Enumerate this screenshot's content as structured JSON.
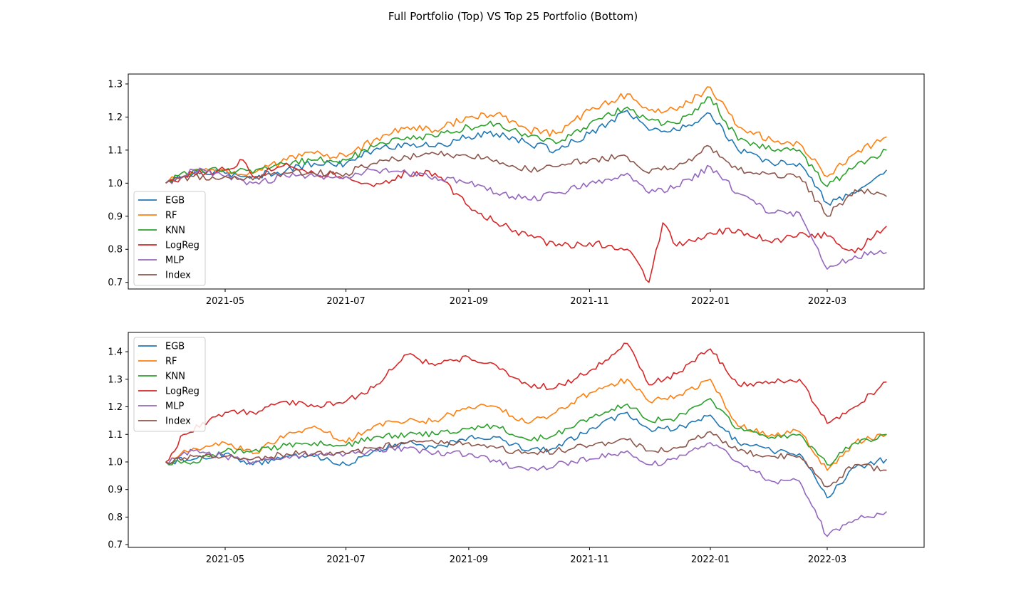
{
  "figure": {
    "title": "Full Portfolio (Top) VS Top 25 Portfolio (Bottom)"
  },
  "chart_data": [
    {
      "type": "line",
      "title": "",
      "xlabel": "",
      "ylabel": "",
      "x_start": "2021-04-01",
      "x_end": "2022-03-31",
      "x_ticks": [
        "2021-05",
        "2021-07",
        "2021-09",
        "2021-11",
        "2022-01",
        "2022-03"
      ],
      "y_ticks": [
        0.7,
        0.8,
        0.9,
        1.0,
        1.1,
        1.2,
        1.3
      ],
      "ylim": [
        0.68,
        1.33
      ],
      "grid": false,
      "legend_position": "center-left",
      "series": [
        {
          "name": "EGB",
          "color": "#1f77b4",
          "x": [
            "2021-04-01",
            "2021-04-15",
            "2021-05-01",
            "2021-05-15",
            "2021-06-01",
            "2021-06-15",
            "2021-07-01",
            "2021-07-15",
            "2021-08-01",
            "2021-08-15",
            "2021-09-01",
            "2021-09-15",
            "2021-10-01",
            "2021-10-15",
            "2021-11-01",
            "2021-11-20",
            "2021-12-01",
            "2021-12-15",
            "2022-01-01",
            "2022-01-15",
            "2022-02-01",
            "2022-02-15",
            "2022-03-01",
            "2022-03-15",
            "2022-03-31"
          ],
          "values": [
            1.0,
            1.03,
            1.03,
            1.02,
            1.04,
            1.06,
            1.06,
            1.1,
            1.12,
            1.11,
            1.14,
            1.15,
            1.12,
            1.1,
            1.15,
            1.22,
            1.16,
            1.16,
            1.21,
            1.1,
            1.06,
            1.06,
            0.94,
            0.97,
            1.04
          ]
        },
        {
          "name": "RF",
          "color": "#ff7f0e",
          "x": [
            "2021-04-01",
            "2021-04-15",
            "2021-05-01",
            "2021-05-15",
            "2021-06-01",
            "2021-06-15",
            "2021-07-01",
            "2021-07-15",
            "2021-08-01",
            "2021-08-15",
            "2021-09-01",
            "2021-09-15",
            "2021-10-01",
            "2021-10-15",
            "2021-11-01",
            "2021-11-20",
            "2021-12-01",
            "2021-12-15",
            "2022-01-01",
            "2022-01-15",
            "2022-02-01",
            "2022-02-15",
            "2022-03-01",
            "2022-03-15",
            "2022-03-31"
          ],
          "values": [
            1.0,
            1.04,
            1.04,
            1.03,
            1.07,
            1.09,
            1.08,
            1.13,
            1.17,
            1.16,
            1.2,
            1.21,
            1.16,
            1.15,
            1.22,
            1.27,
            1.22,
            1.22,
            1.29,
            1.17,
            1.13,
            1.12,
            1.02,
            1.09,
            1.14
          ]
        },
        {
          "name": "KNN",
          "color": "#2ca02c",
          "x": [
            "2021-04-01",
            "2021-04-15",
            "2021-05-01",
            "2021-05-15",
            "2021-06-01",
            "2021-06-15",
            "2021-07-01",
            "2021-07-15",
            "2021-08-01",
            "2021-08-15",
            "2021-09-01",
            "2021-09-15",
            "2021-10-01",
            "2021-10-15",
            "2021-11-01",
            "2021-11-20",
            "2021-12-01",
            "2021-12-15",
            "2022-01-01",
            "2022-01-15",
            "2022-02-01",
            "2022-02-15",
            "2022-03-01",
            "2022-03-15",
            "2022-03-31"
          ],
          "values": [
            1.0,
            1.04,
            1.04,
            1.03,
            1.06,
            1.07,
            1.07,
            1.11,
            1.14,
            1.14,
            1.17,
            1.18,
            1.14,
            1.12,
            1.18,
            1.23,
            1.19,
            1.18,
            1.26,
            1.13,
            1.1,
            1.1,
            0.99,
            1.05,
            1.1
          ]
        },
        {
          "name": "LogReg",
          "color": "#d62728",
          "x": [
            "2021-04-01",
            "2021-04-15",
            "2021-05-01",
            "2021-05-10",
            "2021-05-15",
            "2021-06-01",
            "2021-06-15",
            "2021-07-01",
            "2021-07-15",
            "2021-08-01",
            "2021-08-15",
            "2021-09-01",
            "2021-09-15",
            "2021-10-01",
            "2021-10-15",
            "2021-11-01",
            "2021-11-20",
            "2021-12-01",
            "2021-12-08",
            "2021-12-15",
            "2022-01-01",
            "2022-01-15",
            "2022-02-01",
            "2022-02-15",
            "2022-03-01",
            "2022-03-15",
            "2022-03-31"
          ],
          "values": [
            1.0,
            1.03,
            1.04,
            1.07,
            1.02,
            1.06,
            1.03,
            1.02,
            0.99,
            1.03,
            1.03,
            0.93,
            0.88,
            0.84,
            0.81,
            0.82,
            0.8,
            0.7,
            0.88,
            0.81,
            0.85,
            0.86,
            0.82,
            0.85,
            0.84,
            0.79,
            0.87
          ]
        },
        {
          "name": "MLP",
          "color": "#9467bd",
          "x": [
            "2021-04-01",
            "2021-04-15",
            "2021-05-01",
            "2021-05-15",
            "2021-06-01",
            "2021-06-15",
            "2021-07-01",
            "2021-07-15",
            "2021-08-01",
            "2021-08-15",
            "2021-09-01",
            "2021-09-15",
            "2021-10-01",
            "2021-10-15",
            "2021-11-01",
            "2021-11-20",
            "2021-12-01",
            "2021-12-15",
            "2022-01-01",
            "2022-01-15",
            "2022-02-01",
            "2022-02-15",
            "2022-03-01",
            "2022-03-15",
            "2022-03-31"
          ],
          "values": [
            1.0,
            1.04,
            1.02,
            1.0,
            1.02,
            1.02,
            1.02,
            1.04,
            1.03,
            1.02,
            1.0,
            0.97,
            0.95,
            0.97,
            1.0,
            1.03,
            0.97,
            0.99,
            1.05,
            0.97,
            0.91,
            0.91,
            0.74,
            0.78,
            0.79
          ]
        },
        {
          "name": "Index",
          "color": "#8c564b",
          "x": [
            "2021-04-01",
            "2021-04-15",
            "2021-05-01",
            "2021-05-15",
            "2021-06-01",
            "2021-06-15",
            "2021-07-01",
            "2021-07-15",
            "2021-08-01",
            "2021-08-15",
            "2021-09-01",
            "2021-09-15",
            "2021-10-01",
            "2021-10-15",
            "2021-11-01",
            "2021-11-20",
            "2021-12-01",
            "2021-12-15",
            "2022-01-01",
            "2022-01-15",
            "2022-02-01",
            "2022-02-15",
            "2022-03-01",
            "2022-03-15",
            "2022-03-31"
          ],
          "values": [
            1.0,
            1.02,
            1.02,
            1.01,
            1.03,
            1.03,
            1.03,
            1.06,
            1.08,
            1.09,
            1.08,
            1.07,
            1.04,
            1.05,
            1.07,
            1.08,
            1.03,
            1.05,
            1.11,
            1.04,
            1.03,
            1.02,
            0.9,
            0.98,
            0.96
          ]
        }
      ]
    },
    {
      "type": "line",
      "title": "",
      "xlabel": "",
      "ylabel": "",
      "x_start": "2021-04-01",
      "x_end": "2022-03-31",
      "x_ticks": [
        "2021-05",
        "2021-07",
        "2021-09",
        "2021-11",
        "2022-01",
        "2022-03"
      ],
      "y_ticks": [
        0.7,
        0.8,
        0.9,
        1.0,
        1.1,
        1.2,
        1.3,
        1.4
      ],
      "ylim": [
        0.69,
        1.47
      ],
      "grid": false,
      "legend_position": "upper-left",
      "series": [
        {
          "name": "EGB",
          "color": "#1f77b4",
          "x": [
            "2021-04-01",
            "2021-04-15",
            "2021-05-01",
            "2021-05-15",
            "2021-06-01",
            "2021-06-15",
            "2021-07-01",
            "2021-07-15",
            "2021-08-01",
            "2021-08-15",
            "2021-09-01",
            "2021-09-15",
            "2021-10-01",
            "2021-10-15",
            "2021-11-01",
            "2021-11-20",
            "2021-12-01",
            "2021-12-15",
            "2022-01-01",
            "2022-01-15",
            "2022-02-01",
            "2022-02-15",
            "2022-03-01",
            "2022-03-15",
            "2022-03-31"
          ],
          "values": [
            1.0,
            1.01,
            1.03,
            0.99,
            1.02,
            1.02,
            0.99,
            1.04,
            1.07,
            1.05,
            1.09,
            1.09,
            1.04,
            1.05,
            1.12,
            1.18,
            1.12,
            1.12,
            1.17,
            1.07,
            1.04,
            1.03,
            0.87,
            0.98,
            1.01
          ]
        },
        {
          "name": "RF",
          "color": "#ff7f0e",
          "x": [
            "2021-04-01",
            "2021-04-15",
            "2021-05-01",
            "2021-05-15",
            "2021-06-01",
            "2021-06-15",
            "2021-07-01",
            "2021-07-15",
            "2021-08-01",
            "2021-08-15",
            "2021-09-01",
            "2021-09-15",
            "2021-10-01",
            "2021-10-15",
            "2021-11-01",
            "2021-11-20",
            "2021-12-01",
            "2021-12-15",
            "2022-01-01",
            "2022-01-15",
            "2022-02-01",
            "2022-02-15",
            "2022-03-01",
            "2022-03-15",
            "2022-03-31"
          ],
          "values": [
            1.0,
            1.05,
            1.07,
            1.03,
            1.1,
            1.13,
            1.07,
            1.13,
            1.15,
            1.15,
            1.2,
            1.2,
            1.14,
            1.18,
            1.25,
            1.3,
            1.22,
            1.24,
            1.3,
            1.13,
            1.1,
            1.11,
            0.97,
            1.07,
            1.1
          ]
        },
        {
          "name": "KNN",
          "color": "#2ca02c",
          "x": [
            "2021-04-01",
            "2021-04-15",
            "2021-05-01",
            "2021-05-15",
            "2021-06-01",
            "2021-06-15",
            "2021-07-01",
            "2021-07-15",
            "2021-08-01",
            "2021-08-15",
            "2021-09-01",
            "2021-09-15",
            "2021-10-01",
            "2021-10-15",
            "2021-11-01",
            "2021-11-20",
            "2021-12-01",
            "2021-12-15",
            "2022-01-01",
            "2022-01-15",
            "2022-02-01",
            "2022-02-15",
            "2022-03-01",
            "2022-03-15",
            "2022-03-31"
          ],
          "values": [
            1.0,
            1.0,
            1.04,
            1.04,
            1.06,
            1.07,
            1.06,
            1.09,
            1.1,
            1.1,
            1.12,
            1.13,
            1.08,
            1.1,
            1.16,
            1.21,
            1.15,
            1.16,
            1.23,
            1.12,
            1.09,
            1.1,
            0.99,
            1.07,
            1.1
          ]
        },
        {
          "name": "LogReg",
          "color": "#d62728",
          "x": [
            "2021-04-01",
            "2021-04-10",
            "2021-05-01",
            "2021-05-15",
            "2021-06-01",
            "2021-06-15",
            "2021-07-01",
            "2021-07-15",
            "2021-08-01",
            "2021-08-15",
            "2021-09-01",
            "2021-09-15",
            "2021-10-01",
            "2021-10-15",
            "2021-11-01",
            "2021-11-20",
            "2021-12-01",
            "2021-12-15",
            "2022-01-01",
            "2022-01-15",
            "2022-02-01",
            "2022-02-15",
            "2022-03-01",
            "2022-03-15",
            "2022-03-31"
          ],
          "values": [
            1.0,
            1.1,
            1.18,
            1.18,
            1.22,
            1.2,
            1.22,
            1.27,
            1.39,
            1.35,
            1.38,
            1.35,
            1.28,
            1.27,
            1.33,
            1.43,
            1.28,
            1.32,
            1.41,
            1.28,
            1.29,
            1.3,
            1.14,
            1.2,
            1.29
          ]
        },
        {
          "name": "MLP",
          "color": "#9467bd",
          "x": [
            "2021-04-01",
            "2021-04-15",
            "2021-05-01",
            "2021-05-15",
            "2021-06-01",
            "2021-06-15",
            "2021-07-01",
            "2021-07-15",
            "2021-08-01",
            "2021-08-15",
            "2021-09-01",
            "2021-09-15",
            "2021-10-01",
            "2021-10-15",
            "2021-11-01",
            "2021-11-20",
            "2021-12-01",
            "2021-12-15",
            "2022-01-01",
            "2022-01-15",
            "2022-02-01",
            "2022-02-15",
            "2022-03-01",
            "2022-03-15",
            "2022-03-31"
          ],
          "values": [
            1.0,
            1.04,
            1.02,
            1.0,
            1.02,
            1.03,
            1.03,
            1.04,
            1.05,
            1.03,
            1.03,
            1.0,
            0.97,
            0.99,
            1.01,
            1.04,
            0.99,
            1.01,
            1.07,
            1.0,
            0.93,
            0.93,
            0.73,
            0.79,
            0.82
          ]
        },
        {
          "name": "Index",
          "color": "#8c564b",
          "x": [
            "2021-04-01",
            "2021-04-15",
            "2021-05-01",
            "2021-05-15",
            "2021-06-01",
            "2021-06-15",
            "2021-07-01",
            "2021-07-15",
            "2021-08-01",
            "2021-08-15",
            "2021-09-01",
            "2021-09-15",
            "2021-10-01",
            "2021-10-15",
            "2021-11-01",
            "2021-11-20",
            "2021-12-01",
            "2021-12-15",
            "2022-01-01",
            "2022-01-15",
            "2022-02-01",
            "2022-02-15",
            "2022-03-01",
            "2022-03-15",
            "2022-03-31"
          ],
          "values": [
            1.0,
            1.02,
            1.02,
            1.01,
            1.03,
            1.03,
            1.03,
            1.05,
            1.07,
            1.07,
            1.07,
            1.05,
            1.03,
            1.04,
            1.06,
            1.08,
            1.04,
            1.05,
            1.11,
            1.04,
            1.02,
            1.02,
            0.91,
            0.99,
            0.97
          ]
        }
      ]
    }
  ]
}
